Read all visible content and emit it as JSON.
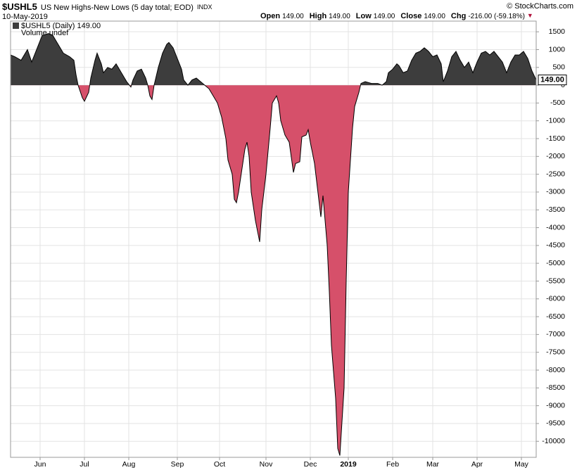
{
  "chart_data": {
    "type": "area",
    "symbol": "$USHL5",
    "title": "US New Highs-New Lows (5 day total; EOD)",
    "exchange": "INDX",
    "date": "10-May-2019",
    "quote": [
      {
        "label": "Open",
        "value": "149.00"
      },
      {
        "label": "High",
        "value": "149.00"
      },
      {
        "label": "Low",
        "value": "149.00"
      },
      {
        "label": "Close",
        "value": "149.00"
      },
      {
        "label": "Chg",
        "value": "-216.00 (-59.18%)"
      }
    ],
    "credit": "© StockCharts.com",
    "legend": [
      "$USHL5 (Daily) 149.00",
      "Volume undef"
    ],
    "current": {
      "value": 149,
      "label": "149.00"
    },
    "positive_color": "#3d3d3d",
    "negative_color": "#d6506a",
    "line_color": "#000000",
    "grid": true,
    "x": [
      0,
      2,
      5,
      8,
      10,
      12,
      15,
      18,
      20,
      22,
      25,
      28,
      30,
      31,
      32,
      34,
      35,
      37,
      38,
      40,
      41,
      43,
      44,
      46,
      48,
      50,
      51,
      52,
      54,
      55,
      57,
      58,
      60,
      62,
      64,
      65,
      66,
      67,
      68,
      70,
      72,
      74,
      75,
      77,
      79,
      81,
      82,
      84,
      86,
      88,
      90,
      92,
      94,
      96,
      98,
      100,
      102,
      103,
      105,
      106,
      107,
      108,
      110,
      111,
      112,
      113,
      114,
      116,
      118,
      119,
      121,
      123,
      124,
      126,
      127,
      128,
      130,
      132,
      134,
      135,
      137,
      138,
      140,
      141,
      142,
      144,
      145,
      147,
      148,
      150,
      151,
      152,
      154,
      155,
      156,
      158,
      159,
      160,
      162,
      163,
      165,
      166,
      168,
      171,
      174,
      176,
      178,
      179,
      181,
      183,
      184,
      186,
      188,
      190,
      192,
      194,
      196,
      198,
      200,
      202,
      204,
      205,
      207,
      209,
      211,
      213,
      215,
      217,
      219,
      221,
      223,
      225,
      227,
      229,
      231,
      233,
      235,
      237,
      239,
      241,
      243,
      245,
      247,
      249
    ],
    "values": [
      850,
      800,
      700,
      1000,
      650,
      950,
      1400,
      1450,
      1400,
      1200,
      900,
      800,
      700,
      300,
      0,
      -350,
      -450,
      -200,
      200,
      700,
      900,
      600,
      350,
      500,
      450,
      600,
      500,
      400,
      200,
      100,
      -50,
      150,
      400,
      450,
      200,
      0,
      -300,
      -400,
      0,
      500,
      900,
      1150,
      1200,
      1050,
      750,
      450,
      150,
      0,
      150,
      200,
      100,
      0,
      -100,
      -300,
      -500,
      -900,
      -1500,
      -2100,
      -2500,
      -3200,
      -3300,
      -3000,
      -2200,
      -1800,
      -1600,
      -2000,
      -3000,
      -3800,
      -4400,
      -3500,
      -2500,
      -1200,
      -500,
      -300,
      -500,
      -1000,
      -1400,
      -1600,
      -2450,
      -2200,
      -2150,
      -1450,
      -1400,
      -1250,
      -1600,
      -2200,
      -2700,
      -3700,
      -3100,
      -4500,
      -5800,
      -7300,
      -8800,
      -10200,
      -10400,
      -8500,
      -5500,
      -3000,
      -1200,
      -600,
      -200,
      50,
      100,
      50,
      50,
      0,
      100,
      350,
      450,
      600,
      550,
      350,
      400,
      700,
      900,
      950,
      1050,
      950,
      800,
      850,
      600,
      100,
      400,
      800,
      950,
      700,
      500,
      650,
      350,
      650,
      900,
      950,
      850,
      950,
      800,
      650,
      350,
      650,
      850,
      850,
      950,
      750,
      400,
      149
    ],
    "xlim": [
      0,
      249
    ],
    "xticks": [
      {
        "value": 14,
        "label": "Jun"
      },
      {
        "value": 35,
        "label": "Jul"
      },
      {
        "value": 56,
        "label": "Aug"
      },
      {
        "value": 79,
        "label": "Sep"
      },
      {
        "value": 99,
        "label": "Oct"
      },
      {
        "value": 121,
        "label": "Nov"
      },
      {
        "value": 142,
        "label": "Dec"
      },
      {
        "value": 160,
        "label": "2019"
      },
      {
        "value": 181,
        "label": "Feb"
      },
      {
        "value": 200,
        "label": "Mar"
      },
      {
        "value": 221,
        "label": "Apr"
      },
      {
        "value": 242,
        "label": "May"
      }
    ],
    "ylim": [
      -10450,
      1800
    ],
    "yticks": [
      1500,
      1000,
      500,
      0,
      -500,
      -1000,
      -1500,
      -2000,
      -2500,
      -3000,
      -3500,
      -4000,
      -4500,
      -5000,
      -5500,
      -6000,
      -6500,
      -7000,
      -7500,
      -8000,
      -8500,
      -9000,
      -9500,
      -10000
    ]
  }
}
